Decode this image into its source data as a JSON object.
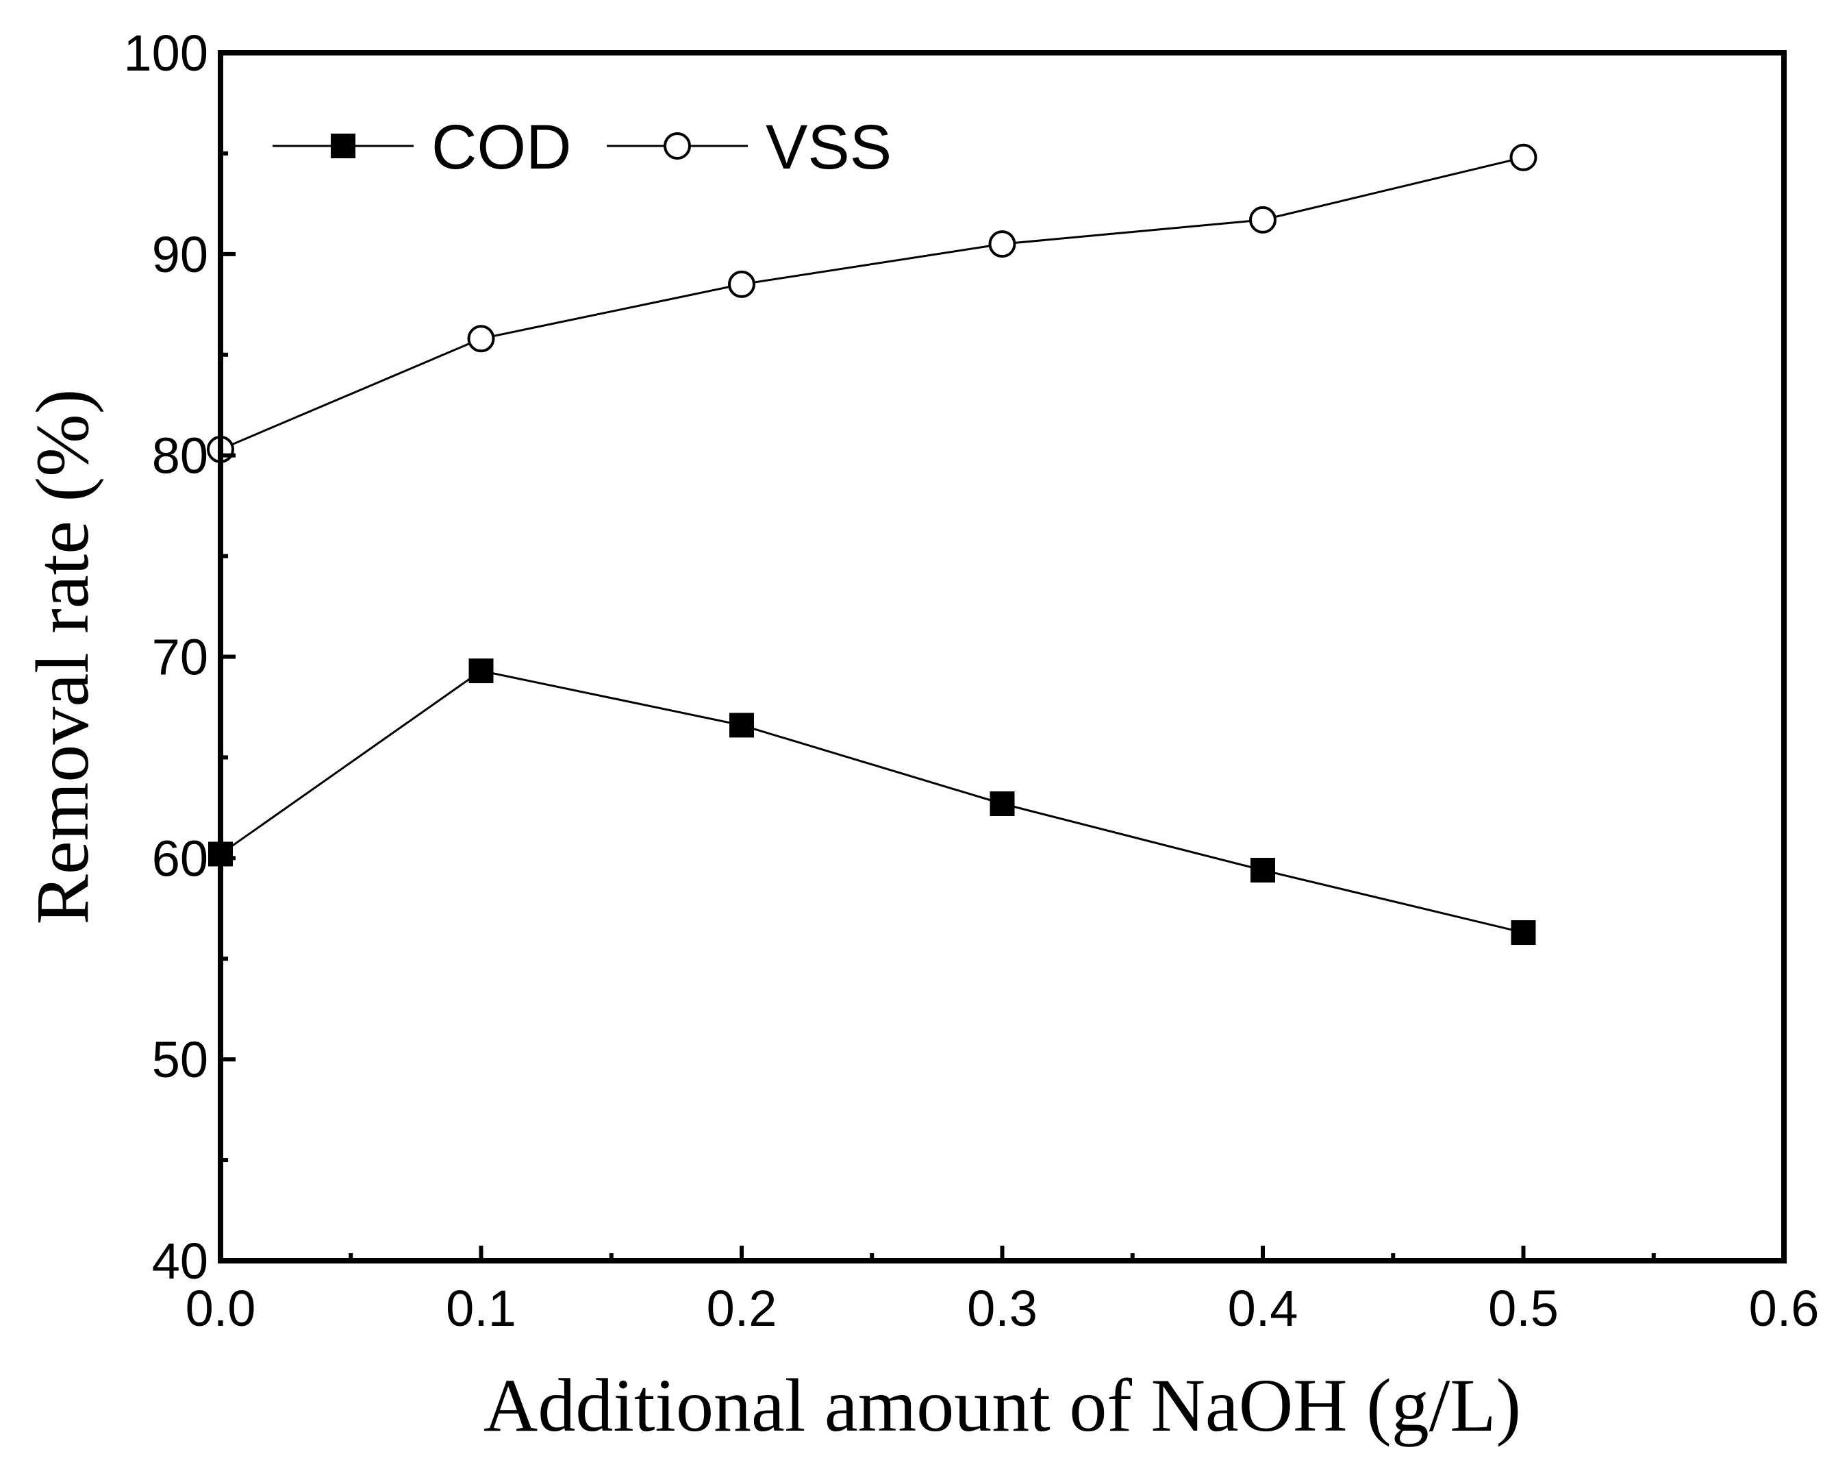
{
  "chart_data": {
    "type": "line",
    "title": "",
    "xlabel": "Additional amount of NaOH (g/L)",
    "ylabel": "Removal rate (%)",
    "xlim": [
      0.0,
      0.6
    ],
    "ylim": [
      40,
      100
    ],
    "xticks": [
      "0.0",
      "0.1",
      "0.2",
      "0.3",
      "0.4",
      "0.5",
      "0.6"
    ],
    "xtick_values": [
      0.0,
      0.1,
      0.2,
      0.3,
      0.4,
      0.5,
      0.6
    ],
    "yticks": [
      "40",
      "50",
      "60",
      "70",
      "80",
      "90",
      "100"
    ],
    "ytick_values": [
      40,
      50,
      60,
      70,
      80,
      90,
      100
    ],
    "grid": false,
    "legend_position": "top-left",
    "x": [
      0.0,
      0.1,
      0.2,
      0.3,
      0.4,
      0.5
    ],
    "series": [
      {
        "name": "COD",
        "marker": "filled-square",
        "values": [
          60.2,
          69.3,
          66.6,
          62.7,
          59.4,
          56.3
        ]
      },
      {
        "name": "VSS",
        "marker": "open-circle",
        "values": [
          80.3,
          85.8,
          88.5,
          90.5,
          91.7,
          94.8
        ]
      }
    ]
  }
}
